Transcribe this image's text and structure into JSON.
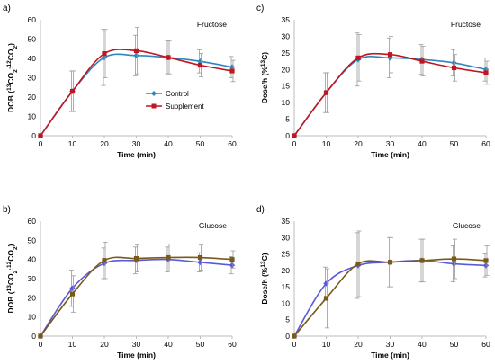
{
  "chart_data": [
    {
      "panel": "a)",
      "type": "line",
      "subtitle": "Fructose",
      "xlabel": "Time (min)",
      "ylabel": "DOB (13CO2:12CO2)",
      "xlim": [
        0,
        60
      ],
      "ylim": [
        0,
        60
      ],
      "xticks": [
        0,
        10,
        20,
        30,
        40,
        50,
        60
      ],
      "yticks": [
        0,
        10,
        20,
        30,
        40,
        50,
        60
      ],
      "legend": "center-right",
      "x": [
        0,
        10,
        20,
        30,
        40,
        50,
        60
      ],
      "series": [
        {
          "name": "Control",
          "color": "#2e86c1",
          "marker": "diamond",
          "values": [
            0,
            23,
            40.5,
            41.5,
            40.5,
            38.5,
            35.5
          ],
          "errors": [
            0,
            10.5,
            14.5,
            10.5,
            8.5,
            6.0,
            5.5
          ]
        },
        {
          "name": "Supplement",
          "color": "#c0161f",
          "marker": "square",
          "values": [
            0,
            23,
            42.5,
            44,
            40.5,
            36.5,
            33.5
          ],
          "errors": [
            0,
            10.5,
            12.5,
            12.0,
            8.5,
            6.0,
            5.5
          ]
        }
      ]
    },
    {
      "panel": "c)",
      "type": "line",
      "subtitle": "Fructose",
      "xlabel": "Time (min)",
      "ylabel": "Dose/h (%13C)",
      "xlim": [
        0,
        60
      ],
      "ylim": [
        0,
        35
      ],
      "xticks": [
        0,
        10,
        20,
        30,
        40,
        50,
        60
      ],
      "yticks": [
        0,
        5,
        10,
        15,
        20,
        25,
        30,
        35
      ],
      "x": [
        0,
        10,
        20,
        30,
        40,
        50,
        60
      ],
      "series": [
        {
          "color": "#2e86c1",
          "marker": "diamond",
          "values": [
            0,
            13,
            23,
            23.5,
            23,
            22,
            20
          ],
          "errors": [
            0,
            6.0,
            8.0,
            6.0,
            4.5,
            4.0,
            3.5
          ]
        },
        {
          "color": "#c0161f",
          "marker": "square",
          "values": [
            0,
            13,
            23.5,
            24.5,
            22.5,
            20.5,
            19
          ],
          "errors": [
            0,
            6.0,
            7.0,
            5.5,
            4.5,
            4.0,
            3.5
          ]
        }
      ]
    },
    {
      "panel": "b)",
      "type": "line",
      "subtitle": "Glucose",
      "xlabel": "Time (min)",
      "ylabel": "DOB (13CO2:12CO2)",
      "xlim": [
        0,
        60
      ],
      "ylim": [
        0,
        60
      ],
      "xticks": [
        0,
        10,
        20,
        30,
        40,
        50,
        60
      ],
      "yticks": [
        0,
        10,
        20,
        30,
        40,
        50,
        60
      ],
      "x": [
        0,
        10,
        20,
        30,
        40,
        50,
        60
      ],
      "series": [
        {
          "color": "#5a5ad6",
          "marker": "diamond",
          "values": [
            0,
            25,
            38,
            39.5,
            40,
            38.5,
            37
          ],
          "errors": [
            0,
            9.5,
            8.0,
            7.0,
            6.5,
            5.0,
            4.5
          ]
        },
        {
          "color": "#7a5a1a",
          "marker": "square",
          "values": [
            0,
            22,
            39.5,
            40.5,
            41,
            41,
            40
          ],
          "errors": [
            0,
            9.5,
            9.5,
            7.0,
            7.0,
            6.5,
            4.5
          ]
        }
      ]
    },
    {
      "panel": "d)",
      "type": "line",
      "subtitle": "Glucose",
      "xlabel": "Time (min)",
      "ylabel": "Dose/h (%13C)",
      "xlim": [
        0,
        60
      ],
      "ylim": [
        0,
        35
      ],
      "xticks": [
        0,
        10,
        20,
        30,
        40,
        50,
        60
      ],
      "yticks": [
        0,
        5,
        10,
        15,
        20,
        25,
        30,
        35
      ],
      "x": [
        0,
        10,
        20,
        30,
        40,
        50,
        60
      ],
      "series": [
        {
          "color": "#5a5ad6",
          "marker": "diamond",
          "values": [
            0,
            16,
            21.5,
            22.5,
            23,
            22,
            21.5
          ],
          "errors": [
            0,
            5.0,
            10.0,
            7.5,
            6.5,
            5.5,
            3.5
          ]
        },
        {
          "color": "#7a5a1a",
          "marker": "square",
          "values": [
            0,
            11.5,
            22,
            22.5,
            23,
            23.5,
            23
          ],
          "errors": [
            0,
            9.0,
            10.0,
            7.5,
            6.5,
            6.0,
            4.5
          ]
        }
      ]
    }
  ]
}
